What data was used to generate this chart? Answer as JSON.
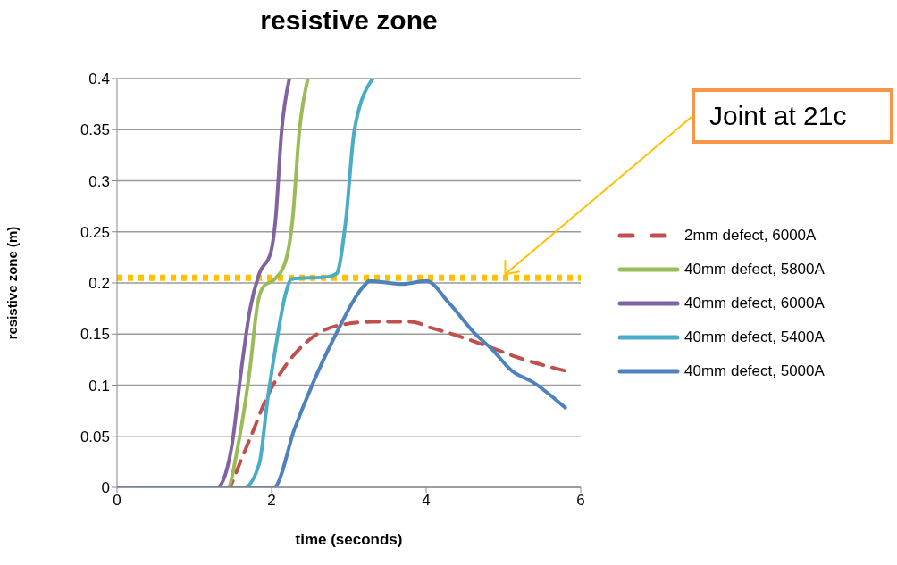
{
  "chart_data": {
    "type": "line",
    "title": "resistive zone",
    "xlabel": "time (seconds)",
    "ylabel": "resistive zone (m)",
    "xlim": [
      0,
      6
    ],
    "xticks": [
      0,
      2,
      4,
      6
    ],
    "ylim": [
      0,
      0.4
    ],
    "yticks": [
      0,
      0.05,
      0.1,
      0.15,
      0.2,
      0.25,
      0.3,
      0.35,
      0.4
    ],
    "grid": "y",
    "legend": "right",
    "marker": "none",
    "series": [
      {
        "name": "2mm defect, 6000A",
        "color": "#c0504d",
        "line_style": "dashed",
        "x": [
          0,
          1.45,
          1.49,
          1.57,
          1.76,
          1.95,
          2.18,
          2.45,
          2.84,
          3.31,
          3.8,
          4.07,
          4.38,
          4.76,
          5.23,
          5.8
        ],
        "values": [
          0,
          0,
          0.005,
          0.02,
          0.055,
          0.09,
          0.119,
          0.142,
          0.158,
          0.162,
          0.162,
          0.156,
          0.149,
          0.139,
          0.126,
          0.114
        ]
      },
      {
        "name": "40mm defect, 5800A",
        "color": "#9bbb59",
        "line_style": "solid",
        "x": [
          0,
          1.43,
          1.57,
          1.72,
          1.82,
          1.9,
          2.03,
          2.18,
          2.27,
          2.36,
          2.47
        ],
        "values": [
          0,
          0,
          0.043,
          0.116,
          0.18,
          0.197,
          0.203,
          0.221,
          0.261,
          0.349,
          0.4
        ]
      },
      {
        "name": "40mm defect, 6000A",
        "color": "#8064a2",
        "line_style": "solid",
        "x": [
          0,
          1.3,
          1.38,
          1.49,
          1.61,
          1.72,
          1.84,
          1.99,
          2.05,
          2.13,
          2.23
        ],
        "values": [
          0,
          0,
          0.008,
          0.043,
          0.116,
          0.174,
          0.209,
          0.23,
          0.261,
          0.349,
          0.4
        ]
      },
      {
        "name": "40mm defect, 5400A",
        "color": "#4bacc6",
        "line_style": "solid",
        "x": [
          0,
          1.65,
          1.84,
          1.95,
          2.07,
          2.18,
          2.26,
          2.73,
          2.84,
          2.96,
          3.07,
          3.31
        ],
        "values": [
          0,
          0,
          0.023,
          0.087,
          0.145,
          0.189,
          0.204,
          0.206,
          0.209,
          0.261,
          0.349,
          0.4
        ]
      },
      {
        "name": "40mm defect, 5000A",
        "color": "#4f81bd",
        "line_style": "solid",
        "x": [
          0,
          2.03,
          2.3,
          2.53,
          2.8,
          3.23,
          3.26,
          3.69,
          4.0,
          4.3,
          4.65,
          4.84,
          5.11,
          5.38,
          5.8
        ],
        "values": [
          0,
          0,
          0.058,
          0.101,
          0.145,
          0.2,
          0.202,
          0.199,
          0.202,
          0.18,
          0.149,
          0.136,
          0.114,
          0.103,
          0.078
        ]
      }
    ],
    "ref_lines": [
      {
        "axis": "y",
        "value": 0.205,
        "color": "#ffc000",
        "line_style": "dotted"
      }
    ],
    "annotations": [
      {
        "text": "Joint at 21c",
        "x": 5,
        "y": 0.205
      }
    ]
  }
}
